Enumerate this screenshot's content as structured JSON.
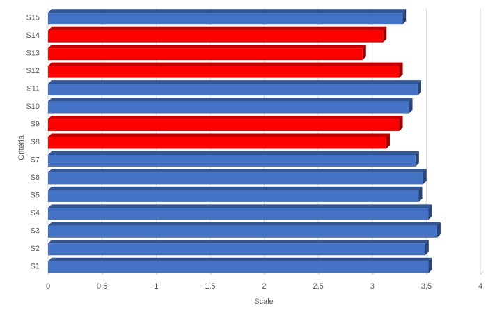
{
  "chart_data": {
    "type": "bar",
    "orientation": "horizontal",
    "style": "3d",
    "categories": [
      "S1",
      "S2",
      "S3",
      "S4",
      "S5",
      "S6",
      "S7",
      "S8",
      "S9",
      "S10",
      "S11",
      "S12",
      "S13",
      "S14",
      "S15"
    ],
    "values": [
      3.52,
      3.49,
      3.6,
      3.52,
      3.43,
      3.47,
      3.4,
      3.13,
      3.25,
      3.34,
      3.42,
      3.25,
      2.91,
      3.1,
      3.28
    ],
    "bar_colors": [
      "#4472C4",
      "#4472C4",
      "#4472C4",
      "#4472C4",
      "#4472C4",
      "#4472C4",
      "#4472C4",
      "#FF0000",
      "#FF0000",
      "#4472C4",
      "#4472C4",
      "#FF0000",
      "#FF0000",
      "#FF0000",
      "#4472C4"
    ],
    "xlabel": "Scale",
    "ylabel": "Criteria",
    "xlim": [
      0,
      4
    ],
    "x_ticks": [
      "0",
      "0,5",
      "1",
      "1,5",
      "2",
      "2,5",
      "3",
      "3,5",
      "4"
    ],
    "grid": true,
    "legend": "none"
  }
}
